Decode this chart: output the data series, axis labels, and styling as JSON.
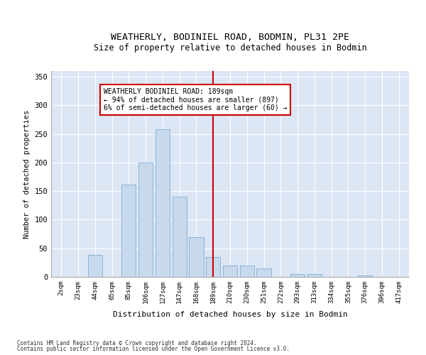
{
  "title": "WEATHERLY, BODINIEL ROAD, BODMIN, PL31 2PE",
  "subtitle": "Size of property relative to detached houses in Bodmin",
  "xlabel": "Distribution of detached houses by size in Bodmin",
  "ylabel": "Number of detached properties",
  "categories": [
    "2sqm",
    "23sqm",
    "44sqm",
    "65sqm",
    "85sqm",
    "106sqm",
    "127sqm",
    "147sqm",
    "168sqm",
    "189sqm",
    "210sqm",
    "230sqm",
    "251sqm",
    "272sqm",
    "293sqm",
    "313sqm",
    "334sqm",
    "355sqm",
    "376sqm",
    "396sqm",
    "417sqm"
  ],
  "values": [
    0,
    0,
    38,
    0,
    162,
    200,
    258,
    140,
    70,
    35,
    20,
    20,
    15,
    0,
    5,
    5,
    0,
    0,
    2,
    0,
    0
  ],
  "bar_color": "#c8d9ed",
  "bar_edge_color": "#7bafd4",
  "vline_idx": 9,
  "vline_color": "#cc0000",
  "annotation_text": "WEATHERLY BODINIEL ROAD: 189sqm\n← 94% of detached houses are smaller (897)\n6% of semi-detached houses are larger (60) →",
  "annotation_box_color": "#ffffff",
  "annotation_box_edge_color": "#cc0000",
  "ylim": [
    0,
    360
  ],
  "yticks": [
    0,
    50,
    100,
    150,
    200,
    250,
    300,
    350
  ],
  "background_color": "#dce6f5",
  "footer_line1": "Contains HM Land Registry data © Crown copyright and database right 2024.",
  "footer_line2": "Contains public sector information licensed under the Open Government Licence v3.0."
}
